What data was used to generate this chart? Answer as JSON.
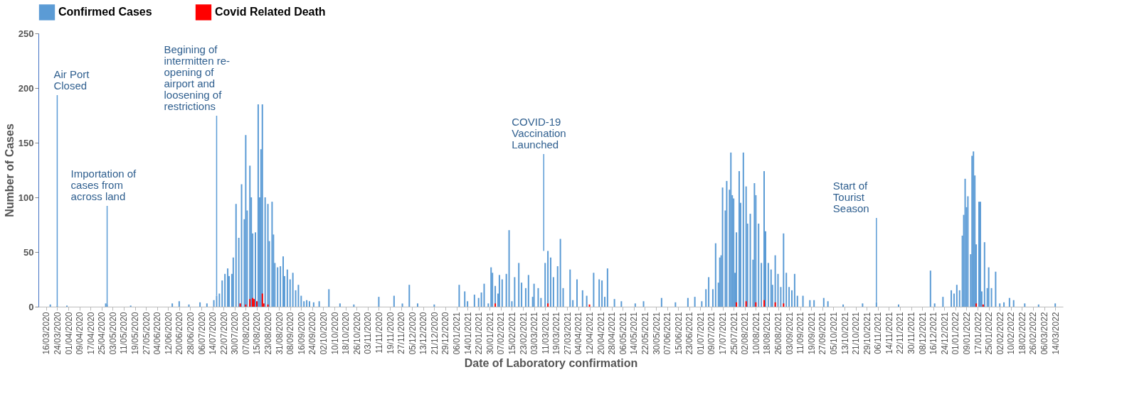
{
  "chart_data": {
    "type": "bar",
    "xlabel": "Date of Laboratory confirmation",
    "ylabel": "Number of Cases",
    "xlim": [
      "2020-03-13",
      "2022-03-17"
    ],
    "ylim": [
      0,
      250
    ],
    "yticks": [
      0,
      50,
      100,
      150,
      200,
      250
    ],
    "xticks": [
      {
        "value": "2020-03-16",
        "label": "16/03/2020"
      },
      {
        "value": "2020-03-24",
        "label": "24/03/2020"
      },
      {
        "value": "2020-04-01",
        "label": "01/04/2020"
      },
      {
        "value": "2020-04-09",
        "label": "09/04/2020"
      },
      {
        "value": "2020-04-17",
        "label": "17/04/2020"
      },
      {
        "value": "2020-04-25",
        "label": "25/04/2020"
      },
      {
        "value": "2020-05-03",
        "label": "03/05/2020"
      },
      {
        "value": "2020-05-11",
        "label": "11/05/2020"
      },
      {
        "value": "2020-05-19",
        "label": "19/05/2020"
      },
      {
        "value": "2020-05-27",
        "label": "27/05/2020"
      },
      {
        "value": "2020-06-04",
        "label": "04/06/2020"
      },
      {
        "value": "2020-06-12",
        "label": "12/06/2020"
      },
      {
        "value": "2020-06-20",
        "label": "20/06/2020"
      },
      {
        "value": "2020-06-28",
        "label": "28/06/2020"
      },
      {
        "value": "2020-07-06",
        "label": "06/07/2020"
      },
      {
        "value": "2020-07-14",
        "label": "14/07/2020"
      },
      {
        "value": "2020-07-22",
        "label": "22/07/2020"
      },
      {
        "value": "2020-07-30",
        "label": "30/07/2020"
      },
      {
        "value": "2020-08-07",
        "label": "07/08/2020"
      },
      {
        "value": "2020-08-15",
        "label": "15/08/2020"
      },
      {
        "value": "2020-08-23",
        "label": "23/08/2020"
      },
      {
        "value": "2020-08-31",
        "label": "31/08/2020"
      },
      {
        "value": "2020-09-08",
        "label": "08/09/2020"
      },
      {
        "value": "2020-09-16",
        "label": "16/09/2020"
      },
      {
        "value": "2020-09-24",
        "label": "24/09/2020"
      },
      {
        "value": "2020-10-02",
        "label": "02/10/2020"
      },
      {
        "value": "2020-10-10",
        "label": "10/10/2020"
      },
      {
        "value": "2020-10-18",
        "label": "18/10/2020"
      },
      {
        "value": "2020-10-26",
        "label": "26/10/2020"
      },
      {
        "value": "2020-11-03",
        "label": "03/11/2020"
      },
      {
        "value": "2020-11-11",
        "label": "11/11/2020"
      },
      {
        "value": "2020-11-19",
        "label": "19/11/2020"
      },
      {
        "value": "2020-11-27",
        "label": "27/11/2020"
      },
      {
        "value": "2020-12-05",
        "label": "05/12/2020"
      },
      {
        "value": "2020-12-13",
        "label": "13/12/2020"
      },
      {
        "value": "2020-12-21",
        "label": "21/12/2020"
      },
      {
        "value": "2020-12-29",
        "label": "29/12/2020"
      },
      {
        "value": "2021-01-06",
        "label": "06/01/2021"
      },
      {
        "value": "2021-01-14",
        "label": "14/01/2021"
      },
      {
        "value": "2021-01-22",
        "label": "22/01/2021"
      },
      {
        "value": "2021-01-30",
        "label": "30/01/2021"
      },
      {
        "value": "2021-02-07",
        "label": "07/02/2021"
      },
      {
        "value": "2021-02-15",
        "label": "15/02/2021"
      },
      {
        "value": "2021-02-23",
        "label": "23/02/2021"
      },
      {
        "value": "2021-03-03",
        "label": "03/03/2021"
      },
      {
        "value": "2021-03-11",
        "label": "11/03/2021"
      },
      {
        "value": "2021-03-19",
        "label": "19/03/2021"
      },
      {
        "value": "2021-03-27",
        "label": "27/03/2021"
      },
      {
        "value": "2021-04-04",
        "label": "04/04/2021"
      },
      {
        "value": "2021-04-12",
        "label": "12/04/2021"
      },
      {
        "value": "2021-04-20",
        "label": "20/04/2021"
      },
      {
        "value": "2021-04-28",
        "label": "28/04/2021"
      },
      {
        "value": "2021-05-06",
        "label": "06/05/2021"
      },
      {
        "value": "2021-05-14",
        "label": "14/05/2021"
      },
      {
        "value": "2021-05-22",
        "label": "22/05/2021"
      },
      {
        "value": "2021-05-30",
        "label": "30/05/2021"
      },
      {
        "value": "2021-06-07",
        "label": "07/06/2021"
      },
      {
        "value": "2021-06-15",
        "label": "15/06/2021"
      },
      {
        "value": "2021-06-23",
        "label": "23/06/2021"
      },
      {
        "value": "2021-07-01",
        "label": "01/07/2021"
      },
      {
        "value": "2021-07-09",
        "label": "09/07/2021"
      },
      {
        "value": "2021-07-17",
        "label": "17/07/2021"
      },
      {
        "value": "2021-07-25",
        "label": "25/07/2021"
      },
      {
        "value": "2021-08-02",
        "label": "02/08/2021"
      },
      {
        "value": "2021-08-10",
        "label": "10/08/2021"
      },
      {
        "value": "2021-08-18",
        "label": "18/08/2021"
      },
      {
        "value": "2021-08-26",
        "label": "26/08/2021"
      },
      {
        "value": "2021-09-03",
        "label": "03/09/2021"
      },
      {
        "value": "2021-09-11",
        "label": "11/09/2021"
      },
      {
        "value": "2021-09-19",
        "label": "19/09/2021"
      },
      {
        "value": "2021-09-27",
        "label": "27/09/2021"
      },
      {
        "value": "2021-10-05",
        "label": "05/10/2021"
      },
      {
        "value": "2021-10-13",
        "label": "13/10/2021"
      },
      {
        "value": "2021-10-21",
        "label": "21/10/2021"
      },
      {
        "value": "2021-10-29",
        "label": "29/10/2021"
      },
      {
        "value": "2021-11-06",
        "label": "06/11/2021"
      },
      {
        "value": "2021-11-14",
        "label": "14/11/2021"
      },
      {
        "value": "2021-11-22",
        "label": "22/11/2021"
      },
      {
        "value": "2021-11-30",
        "label": "30/11/2021"
      },
      {
        "value": "2021-12-08",
        "label": "08/12/2021"
      },
      {
        "value": "2021-12-16",
        "label": "16/12/2021"
      },
      {
        "value": "2021-12-24",
        "label": "24/12/2021"
      },
      {
        "value": "2022-01-01",
        "label": "01/01/2022"
      },
      {
        "value": "2022-01-09",
        "label": "09/01/2022"
      },
      {
        "value": "2022-01-17",
        "label": "17/01/2022"
      },
      {
        "value": "2022-01-25",
        "label": "25/01/2022"
      },
      {
        "value": "2022-02-02",
        "label": "02/02/2022"
      },
      {
        "value": "2022-02-10",
        "label": "10/02/2022"
      },
      {
        "value": "2022-02-18",
        "label": "18/02/2022"
      },
      {
        "value": "2022-02-26",
        "label": "26/02/2022"
      },
      {
        "value": "2022-03-06",
        "label": "06/03/2022"
      },
      {
        "value": "2022-03-14",
        "label": "14/03/2022"
      }
    ],
    "grid": false,
    "legend": "top",
    "series": [
      {
        "name": "Confirmed Cases",
        "color": "#5b9bd5",
        "x": [
          "2020-03-19",
          "2020-03-24",
          "2020-03-31",
          "2020-04-28",
          "2020-04-29",
          "2020-05-16",
          "2020-06-15",
          "2020-06-20",
          "2020-06-27",
          "2020-07-05",
          "2020-07-10",
          "2020-07-15",
          "2020-07-17",
          "2020-07-19",
          "2020-07-21",
          "2020-07-23",
          "2020-07-25",
          "2020-07-26",
          "2020-07-28",
          "2020-07-29",
          "2020-07-31",
          "2020-08-02",
          "2020-08-04",
          "2020-08-06",
          "2020-08-07",
          "2020-08-08",
          "2020-08-10",
          "2020-08-11",
          "2020-08-12",
          "2020-08-14",
          "2020-08-16",
          "2020-08-17",
          "2020-08-18",
          "2020-08-19",
          "2020-08-21",
          "2020-08-23",
          "2020-08-24",
          "2020-08-26",
          "2020-08-27",
          "2020-08-28",
          "2020-08-30",
          "2020-09-01",
          "2020-09-03",
          "2020-09-04",
          "2020-09-06",
          "2020-09-08",
          "2020-09-10",
          "2020-09-12",
          "2020-09-14",
          "2020-09-16",
          "2020-09-18",
          "2020-09-20",
          "2020-09-22",
          "2020-09-25",
          "2020-09-29",
          "2020-10-06",
          "2020-10-14",
          "2020-10-24",
          "2020-11-11",
          "2020-11-22",
          "2020-11-28",
          "2020-12-03",
          "2020-12-09",
          "2020-12-21",
          "2021-01-08",
          "2021-01-12",
          "2021-01-14",
          "2021-01-19",
          "2021-01-22",
          "2021-01-24",
          "2021-01-26",
          "2021-01-29",
          "2021-01-31",
          "2021-02-01",
          "2021-02-03",
          "2021-02-05",
          "2021-02-06",
          "2021-02-08",
          "2021-02-11",
          "2021-02-13",
          "2021-02-15",
          "2021-02-17",
          "2021-02-20",
          "2021-02-22",
          "2021-02-25",
          "2021-02-27",
          "2021-03-02",
          "2021-03-03",
          "2021-03-06",
          "2021-03-08",
          "2021-03-11",
          "2021-03-13",
          "2021-03-15",
          "2021-03-17",
          "2021-03-20",
          "2021-03-22",
          "2021-03-24",
          "2021-03-29",
          "2021-03-31",
          "2021-04-03",
          "2021-04-07",
          "2021-04-10",
          "2021-04-15",
          "2021-04-19",
          "2021-04-21",
          "2021-04-23",
          "2021-04-25",
          "2021-04-30",
          "2021-05-05",
          "2021-05-15",
          "2021-05-21",
          "2021-06-03",
          "2021-06-13",
          "2021-06-22",
          "2021-06-27",
          "2021-07-02",
          "2021-07-05",
          "2021-07-07",
          "2021-07-10",
          "2021-07-12",
          "2021-07-14",
          "2021-07-15",
          "2021-07-16",
          "2021-07-17",
          "2021-07-19",
          "2021-07-20",
          "2021-07-22",
          "2021-07-23",
          "2021-07-24",
          "2021-07-25",
          "2021-07-26",
          "2021-07-27",
          "2021-07-29",
          "2021-07-30",
          "2021-08-01",
          "2021-08-03",
          "2021-08-04",
          "2021-08-06",
          "2021-08-08",
          "2021-08-09",
          "2021-08-10",
          "2021-08-12",
          "2021-08-14",
          "2021-08-16",
          "2021-08-17",
          "2021-08-19",
          "2021-08-21",
          "2021-08-22",
          "2021-08-24",
          "2021-08-26",
          "2021-08-28",
          "2021-08-30",
          "2021-09-01",
          "2021-09-03",
          "2021-09-05",
          "2021-09-07",
          "2021-09-09",
          "2021-09-13",
          "2021-09-18",
          "2021-09-21",
          "2021-09-28",
          "2021-10-01",
          "2021-10-12",
          "2021-10-26",
          "2021-11-05",
          "2021-11-21",
          "2021-12-14",
          "2021-12-17",
          "2021-12-23",
          "2021-12-29",
          "2021-12-31",
          "2022-01-02",
          "2022-01-04",
          "2022-01-06",
          "2022-01-07",
          "2022-01-08",
          "2022-01-09",
          "2022-01-10",
          "2022-01-12",
          "2022-01-13",
          "2022-01-14",
          "2022-01-15",
          "2022-01-16",
          "2022-01-18",
          "2022-01-19",
          "2022-01-20",
          "2022-01-22",
          "2022-01-24",
          "2022-01-25",
          "2022-01-27",
          "2022-01-30",
          "2022-02-02",
          "2022-02-05",
          "2022-02-09",
          "2022-02-12",
          "2022-02-20",
          "2022-03-02",
          "2022-03-14"
        ],
        "values": [
          2,
          1,
          1,
          3,
          2,
          1,
          3,
          5,
          2,
          4,
          3,
          6,
          10,
          12,
          24,
          30,
          35,
          28,
          30,
          45,
          94,
          63,
          112,
          80,
          157,
          88,
          129,
          100,
          67,
          68,
          185,
          100,
          144,
          185,
          100,
          94,
          60,
          96,
          66,
          40,
          36,
          37,
          46,
          28,
          34,
          25,
          31,
          15,
          20,
          10,
          5,
          6,
          5,
          4,
          5,
          16,
          3,
          2,
          9,
          10,
          3,
          20,
          3,
          2,
          20,
          14,
          5,
          11,
          8,
          13,
          21,
          3,
          36,
          31,
          19,
          12,
          29,
          25,
          30,
          70,
          5,
          27,
          40,
          22,
          17,
          29,
          9,
          21,
          17,
          8,
          40,
          51,
          45,
          27,
          37,
          62,
          17,
          34,
          6,
          25,
          15,
          10,
          31,
          25,
          24,
          9,
          35,
          7,
          5,
          3,
          5,
          8,
          4,
          8,
          9,
          5,
          16,
          27,
          16,
          58,
          22,
          45,
          47,
          109,
          88,
          115,
          107,
          141,
          102,
          99,
          31,
          68,
          124,
          95,
          141,
          110,
          76,
          85,
          43,
          113,
          102,
          76,
          40,
          124,
          69,
          40,
          34,
          20,
          47,
          30,
          18,
          67,
          31,
          18,
          15,
          30,
          10,
          10,
          6,
          6,
          8,
          5,
          2,
          3,
          4,
          2,
          33,
          3,
          9,
          15,
          12,
          20,
          15,
          65,
          84,
          117,
          91,
          101,
          48,
          138,
          142,
          120,
          57,
          96,
          96,
          14,
          59,
          17,
          36,
          17,
          32,
          3,
          4,
          8,
          6,
          3,
          2,
          3
        ]
      },
      {
        "name": "Covid Related Death",
        "color": "#ff0000",
        "x": [
          "2020-08-03",
          "2020-08-07",
          "2020-08-10",
          "2020-08-12",
          "2020-08-13",
          "2020-08-15",
          "2020-08-19",
          "2020-08-20",
          "2020-08-23",
          "2021-02-03",
          "2021-03-13",
          "2021-04-12",
          "2021-07-27",
          "2021-08-03",
          "2021-08-10",
          "2021-08-16",
          "2021-08-24",
          "2021-08-30",
          "2022-01-16",
          "2022-01-21"
        ],
        "values": [
          3,
          2,
          7,
          8,
          7,
          5,
          12,
          3,
          2,
          3,
          3,
          2,
          4,
          5,
          4,
          6,
          4,
          3,
          3,
          2
        ]
      }
    ],
    "annotations": [
      {
        "text": "Air Port Closed",
        "x": "2020-03-24",
        "y": 1
      },
      {
        "text": "Importation of cases from across land",
        "x": "2020-04-29",
        "y": 2
      },
      {
        "text": "Begining of intermitten re-opening of airport and loosening of restrictions",
        "x": "2020-07-17",
        "y": 10
      },
      {
        "text": "COVID-19 Vaccination Launched",
        "x": "2021-03-10",
        "y": 51
      },
      {
        "text": "Start of Tourist Season",
        "x": "2021-11-05",
        "y": 4
      }
    ]
  }
}
